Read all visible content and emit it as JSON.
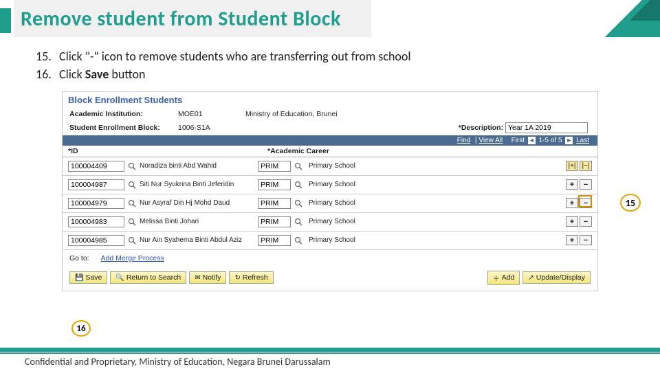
{
  "title": "Remove student from Student Block",
  "accent_color": "#1f9e8e",
  "instructions": [
    {
      "num": "15.",
      "html": "Click \"-\" icon to remove students who are transferring out from school"
    },
    {
      "num": "16.",
      "html": "Click <b>Save</b> button"
    }
  ],
  "panel": {
    "heading": "Block Enrollment Students",
    "fields": {
      "institution_label": "Academic Institution:",
      "institution_code": "MOE01",
      "institution_name": "Ministry of Education, Brunei",
      "block_label": "Student Enrollment Block:",
      "block_value": "1006-S1A",
      "description_label": "*Description:",
      "description_value": "Year 1A 2019"
    },
    "grid_header": {
      "find": "Find",
      "view_all": "View All",
      "first": "First",
      "range": "1-5 of 5",
      "last": "Last"
    },
    "columns": {
      "id": "*ID",
      "career": "*Academic Career"
    },
    "rows": [
      {
        "id": "100004409",
        "name": "Noradiza binti Abd Wahid",
        "career": "PRIM",
        "career_label": "Primary School",
        "first": true
      },
      {
        "id": "100004987",
        "name": "Siti Nur Syukrina Binti Jeferidin",
        "career": "PRIM",
        "career_label": "Primary School"
      },
      {
        "id": "100004979",
        "name": "Nur Asyraf Din Hj Mohd Daud",
        "career": "PRIM",
        "career_label": "Primary School"
      },
      {
        "id": "100004983",
        "name": "Melissa Binti Johari",
        "career": "PRIM",
        "career_label": "Primary School"
      },
      {
        "id": "100004985",
        "name": "Nur Ain Syahema Binti Abdul Aziz",
        "career": "PRIM",
        "career_label": "Primary School"
      }
    ],
    "goto_label": "Go to:",
    "goto_link": "Add Merge Process",
    "buttons": {
      "save": "Save",
      "return": "Return to Search",
      "notify": "Notify",
      "refresh": "Refresh",
      "add": "Add",
      "update": "Update/Display"
    }
  },
  "callouts": {
    "c15": "15",
    "c16": "16"
  },
  "footer": "Confidential and Proprietary, Ministry of Education, Negara Brunei Darussalam"
}
